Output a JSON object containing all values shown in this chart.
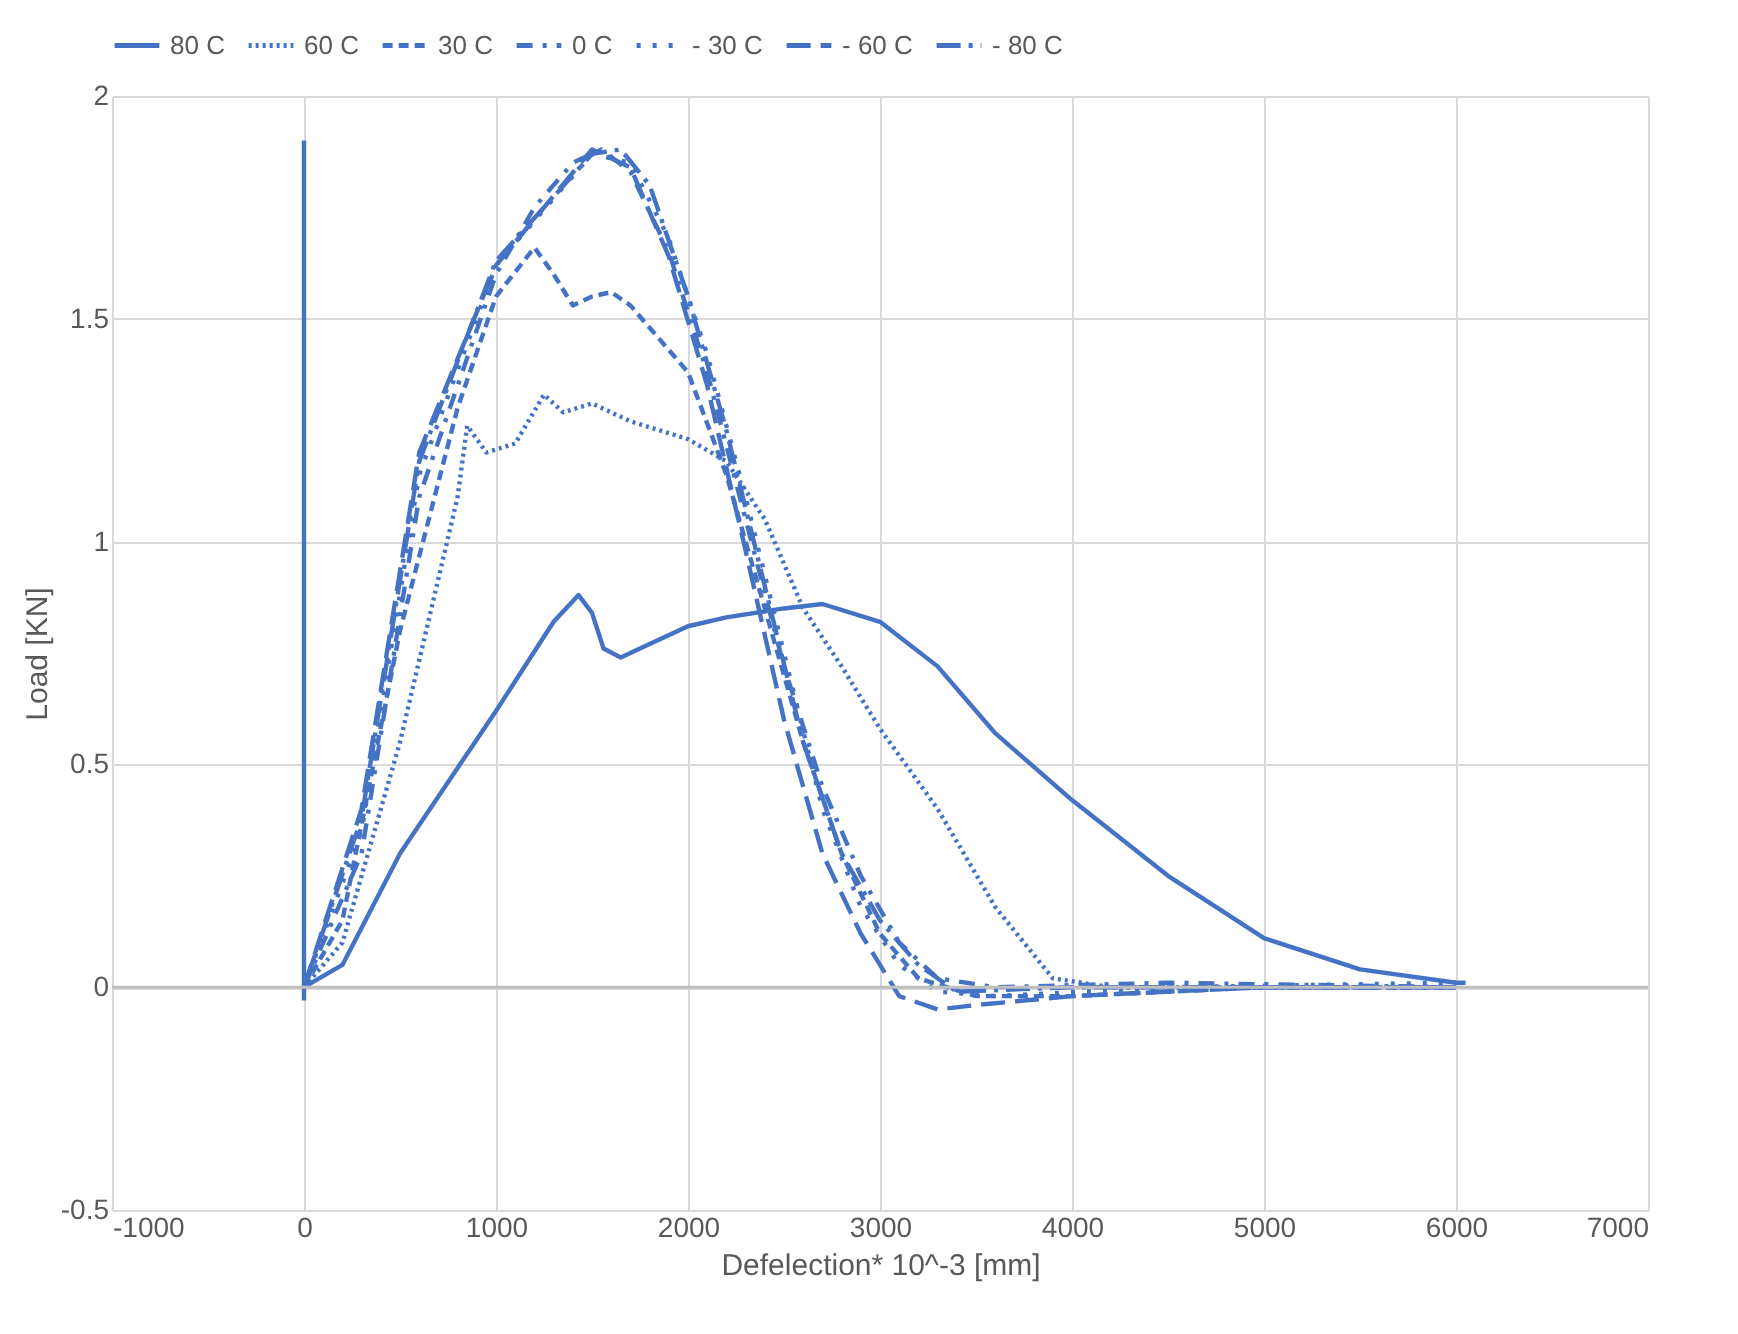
{
  "chart_data": {
    "type": "line",
    "xlabel": "Defelection* 10^-3 [mm]",
    "ylabel": "Load [KN]",
    "xlim": [
      -1000,
      7000
    ],
    "ylim": [
      -0.5,
      2
    ],
    "xticks": [
      -1000,
      0,
      1000,
      2000,
      3000,
      4000,
      5000,
      6000,
      7000
    ],
    "yticks": [
      -0.5,
      0,
      0.5,
      1,
      1.5,
      2
    ],
    "grid": true,
    "legend": "top",
    "marker": "none",
    "series": [
      {
        "name": "80 C",
        "color": "#4472c4",
        "line_style": "solid",
        "x": [
          0,
          200,
          500,
          1000,
          1300,
          1430,
          1500,
          1560,
          1650,
          1800,
          2000,
          2200,
          2500,
          2700,
          3000,
          3300,
          3600,
          4000,
          4500,
          5000,
          5500,
          6000,
          6050
        ],
        "values": [
          0,
          0.05,
          0.3,
          0.62,
          0.82,
          0.88,
          0.84,
          0.76,
          0.74,
          0.77,
          0.81,
          0.83,
          0.85,
          0.86,
          0.82,
          0.72,
          0.57,
          0.42,
          0.25,
          0.11,
          0.04,
          0.01,
          0.01
        ]
      },
      {
        "name": "60 C",
        "color": "#4472c4",
        "line_style": "dotted",
        "x": [
          0,
          200,
          500,
          800,
          850,
          950,
          1100,
          1250,
          1350,
          1500,
          1700,
          2000,
          2200,
          2400,
          2600,
          2800,
          3000,
          3300,
          3600,
          3900,
          4200,
          5000,
          6000
        ],
        "values": [
          0,
          0.1,
          0.55,
          1.1,
          1.26,
          1.2,
          1.22,
          1.33,
          1.29,
          1.31,
          1.27,
          1.23,
          1.18,
          1.05,
          0.85,
          0.72,
          0.58,
          0.4,
          0.18,
          0.02,
          0,
          0,
          0
        ]
      },
      {
        "name": "30 C",
        "color": "#4472c4",
        "line_style": "dashed",
        "x": [
          0,
          200,
          500,
          800,
          1000,
          1200,
          1300,
          1400,
          1500,
          1600,
          1700,
          2000,
          2200,
          2400,
          2600,
          2800,
          3000,
          3200,
          3500,
          4000,
          5000,
          6000
        ],
        "values": [
          0,
          0.15,
          0.8,
          1.3,
          1.55,
          1.66,
          1.6,
          1.53,
          1.55,
          1.56,
          1.53,
          1.38,
          1.15,
          0.85,
          0.55,
          0.3,
          0.12,
          0.02,
          -0.02,
          -0.02,
          0,
          0
        ]
      },
      {
        "name": "0 C",
        "color": "#4472c4",
        "line_style": "dashdot",
        "x": [
          0,
          300,
          600,
          800,
          1000,
          1200,
          1400,
          1550,
          1700,
          1900,
          2100,
          2300,
          2500,
          2700,
          2900,
          3100,
          3300,
          3600,
          4500,
          6000
        ],
        "values": [
          0,
          0.3,
          1.1,
          1.35,
          1.6,
          1.75,
          1.85,
          1.88,
          1.83,
          1.65,
          1.38,
          1.05,
          0.72,
          0.45,
          0.25,
          0.1,
          0.02,
          0,
          0.01,
          0
        ]
      },
      {
        "name": "- 30 C",
        "color": "#4472c4",
        "line_style": "dashdotdot",
        "x": [
          0,
          300,
          600,
          1000,
          1500,
          1700,
          1900,
          2100,
          2300,
          2500,
          2700,
          2900,
          3100,
          3300,
          3600,
          4500,
          6000
        ],
        "values": [
          0,
          0.35,
          1.15,
          1.62,
          1.87,
          1.85,
          1.68,
          1.42,
          1.1,
          0.75,
          0.4,
          0.18,
          0.05,
          -0.01,
          -0.02,
          0,
          0.01
        ]
      },
      {
        "name": "- 60 C",
        "color": "#4472c4",
        "line_style": "longdash",
        "x": [
          0,
          300,
          600,
          1000,
          1500,
          1700,
          1900,
          2100,
          2300,
          2500,
          2700,
          2900,
          3100,
          3300,
          3500,
          4000,
          5000,
          6000
        ],
        "values": [
          0,
          0.4,
          1.2,
          1.62,
          1.88,
          1.84,
          1.64,
          1.35,
          0.98,
          0.6,
          0.3,
          0.12,
          -0.02,
          -0.05,
          -0.04,
          -0.02,
          0,
          0
        ]
      },
      {
        "name": "- 80 C",
        "color": "#4472c4",
        "line_style": "longdashdot",
        "x": [
          0,
          0,
          0,
          300,
          600,
          1000,
          1500,
          1650,
          1800,
          2000,
          2200,
          2400,
          2600,
          2800,
          3000,
          3200,
          3400,
          4000,
          6000
        ],
        "values": [
          -0.03,
          1.9,
          0,
          0.38,
          1.18,
          1.63,
          1.87,
          1.88,
          1.8,
          1.55,
          1.25,
          0.9,
          0.55,
          0.3,
          0.15,
          0.05,
          -0.01,
          0,
          0
        ]
      }
    ]
  }
}
